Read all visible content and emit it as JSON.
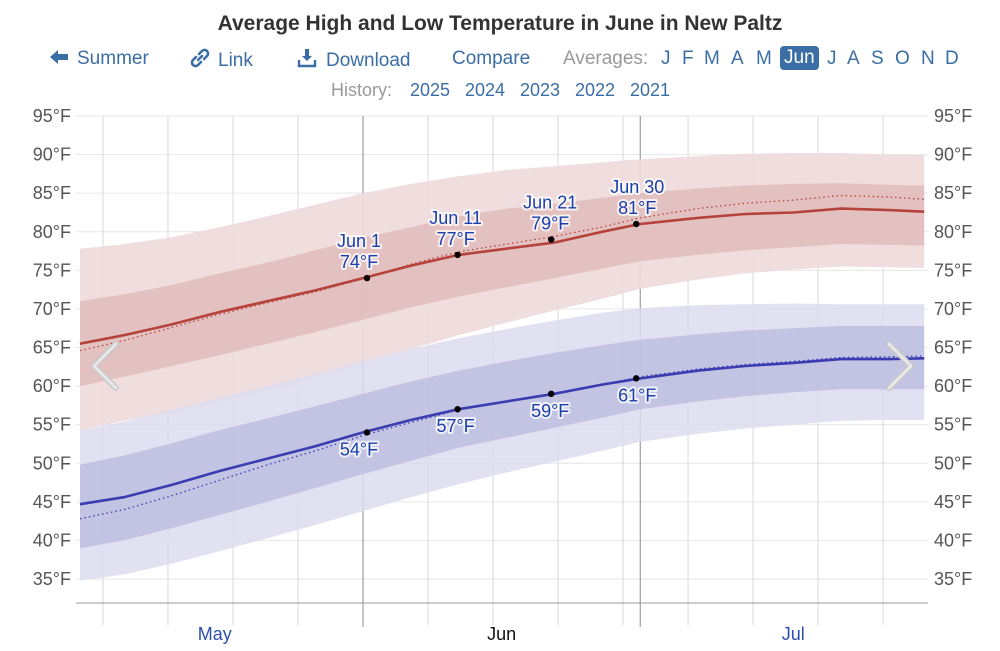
{
  "header": {
    "title": "Average High and Low Temperature in June in New Paltz",
    "nav": {
      "back_label": "Summer",
      "link_label": "Link",
      "download_label": "Download",
      "compare_label": "Compare",
      "averages_label": "Averages:",
      "months": [
        "J",
        "F",
        "M",
        "A",
        "M",
        "Jun",
        "J",
        "A",
        "S",
        "O",
        "N",
        "D"
      ],
      "active_month": "Jun"
    },
    "history": {
      "label": "History:",
      "years": [
        "2025",
        "2024",
        "2023",
        "2022",
        "2021"
      ]
    }
  },
  "colors": {
    "link": "#3a6ea5",
    "high_line": "#b5433c",
    "low_line": "#3b3cb0",
    "high_band_outer": "#efdcdc",
    "high_band_inner": "#e0bcbc",
    "low_band_outer": "#dcdcef",
    "low_band_inner": "#bcbce0",
    "annotation_text": "#1a3fa8"
  },
  "chart_data": {
    "type": "area",
    "title": "Average High and Low Temperature in June in New Paltz",
    "xlabel": "",
    "ylabel": "",
    "x_unit": "days relative to Jun 1",
    "xlim": [
      -29.6,
      58.7
    ],
    "ylim": [
      32,
      95
    ],
    "y_ticks": [
      35,
      40,
      45,
      50,
      55,
      60,
      65,
      70,
      75,
      80,
      85,
      90,
      95
    ],
    "y_tick_labels": [
      "35°F",
      "40°F",
      "45°F",
      "50°F",
      "55°F",
      "60°F",
      "65°F",
      "70°F",
      "75°F",
      "80°F",
      "85°F",
      "90°F",
      "95°F"
    ],
    "y_axis_both_sides": true,
    "x_month_labels": [
      {
        "label": "May",
        "day": -15.5,
        "highlight": true
      },
      {
        "label": "Jun",
        "day": 14.5,
        "highlight": false
      },
      {
        "label": "Jul",
        "day": 45,
        "highlight": true
      }
    ],
    "week_gridlines_days": [
      -27.2,
      -20.4,
      -13.6,
      -6.8,
      0,
      6.8,
      13.6,
      20.4,
      27.2,
      29,
      34,
      40.8,
      47.6,
      54.4
    ],
    "month_boundaries_days": [
      0,
      29
    ],
    "grid": true,
    "x": [
      -29.6,
      -25,
      -20,
      -15,
      -10,
      -5,
      0,
      5,
      10,
      15,
      20,
      25,
      29,
      35,
      40,
      45,
      50,
      55,
      58.7
    ],
    "series": [
      {
        "name": "Average High",
        "style": "solid",
        "values": [
          65.5,
          66.6,
          68.0,
          69.6,
          71.0,
          72.4,
          74.0,
          75.6,
          77.0,
          77.8,
          78.6,
          80.0,
          81.0,
          81.8,
          82.3,
          82.5,
          83.0,
          82.8,
          82.6
        ]
      },
      {
        "name": "Average High (dotted reference)",
        "style": "dotted",
        "values": [
          64.6,
          65.9,
          67.6,
          69.3,
          70.8,
          72.2,
          73.9,
          75.8,
          77.4,
          78.4,
          79.4,
          80.6,
          81.8,
          83.0,
          83.7,
          84.1,
          84.7,
          84.5,
          84.2
        ]
      },
      {
        "name": "High 25th-75th percentile",
        "style": "band",
        "lower": [
          60.0,
          61.2,
          62.6,
          64.0,
          65.5,
          67.0,
          68.6,
          70.2,
          71.6,
          72.8,
          74.0,
          75.2,
          76.2,
          77.0,
          77.6,
          78.0,
          78.4,
          78.3,
          78.2
        ],
        "upper": [
          71.0,
          71.9,
          73.1,
          74.6,
          76.0,
          77.6,
          79.2,
          80.6,
          82.0,
          83.0,
          83.6,
          84.4,
          85.0,
          85.6,
          86.0,
          86.2,
          86.3,
          86.1,
          86.0
        ]
      },
      {
        "name": "High 10th-90th percentile",
        "style": "band",
        "lower": [
          54.3,
          55.5,
          56.7,
          58.0,
          59.5,
          61.2,
          63.0,
          64.8,
          66.6,
          68.2,
          69.8,
          71.3,
          72.6,
          73.8,
          74.6,
          75.1,
          75.5,
          75.4,
          75.3
        ]
      },
      {
        "name": "High 10th-90th percentile upper",
        "style": "band_upper",
        "upper": [
          77.8,
          78.4,
          79.3,
          80.6,
          82.0,
          83.5,
          85.0,
          86.2,
          87.2,
          88.0,
          88.5,
          89.0,
          89.4,
          89.8,
          90.1,
          90.2,
          90.2,
          90.0,
          90.0
        ]
      },
      {
        "name": "Average Low",
        "style": "solid",
        "values": [
          44.7,
          45.6,
          47.2,
          49.0,
          50.6,
          52.2,
          54.0,
          55.6,
          57.0,
          58.0,
          59.0,
          60.2,
          61.0,
          62.0,
          62.6,
          63.0,
          63.5,
          63.5,
          63.6
        ]
      },
      {
        "name": "Average Low (dotted reference)",
        "style": "dotted",
        "values": [
          42.8,
          44.0,
          45.8,
          47.8,
          49.8,
          51.6,
          53.6,
          55.3,
          56.9,
          58.0,
          59.0,
          60.2,
          61.2,
          62.2,
          62.8,
          63.2,
          63.7,
          63.8,
          63.9
        ]
      },
      {
        "name": "Low 25th-75th percentile",
        "style": "band",
        "lower": [
          39.0,
          40.0,
          41.6,
          43.3,
          45.0,
          46.8,
          48.6,
          50.3,
          52.0,
          53.3,
          54.6,
          55.9,
          57.0,
          58.0,
          58.7,
          59.2,
          59.6,
          59.6,
          59.6
        ],
        "upper": [
          49.8,
          51.0,
          52.6,
          54.3,
          55.8,
          57.4,
          59.0,
          60.6,
          62.0,
          63.2,
          64.3,
          65.3,
          66.0,
          66.7,
          67.2,
          67.5,
          67.8,
          67.8,
          67.8
        ]
      },
      {
        "name": "Low 10th-90th percentile",
        "style": "band",
        "lower": [
          34.8,
          35.6,
          37.0,
          38.6,
          40.3,
          42.0,
          43.8,
          45.6,
          47.3,
          48.8,
          50.2,
          51.6,
          52.8,
          53.8,
          54.5,
          55.0,
          55.5,
          55.6,
          55.6
        ],
        "upper": [
          54.3,
          55.4,
          56.9,
          58.5,
          60.0,
          61.6,
          63.2,
          64.8,
          66.2,
          67.4,
          68.5,
          69.5,
          70.1,
          70.5,
          70.6,
          70.7,
          70.6,
          70.6,
          70.6
        ]
      }
    ],
    "annotations": [
      {
        "date": "Jun 1",
        "day": 0,
        "high": 74,
        "high_label": "74°F",
        "low": 54,
        "low_label": "54°F"
      },
      {
        "date": "Jun 11",
        "day": 10,
        "high": 77,
        "high_label": "77°F",
        "low": 57,
        "low_label": "57°F"
      },
      {
        "date": "Jun 21",
        "day": 20,
        "high": 79,
        "high_label": "79°F",
        "low": 59,
        "low_label": "59°F"
      },
      {
        "date": "Jun 30",
        "day": 29,
        "high": 81,
        "high_label": "81°F",
        "low": 61,
        "low_label": "61°F"
      }
    ],
    "navigation_arrows": [
      "previous",
      "next"
    ]
  }
}
